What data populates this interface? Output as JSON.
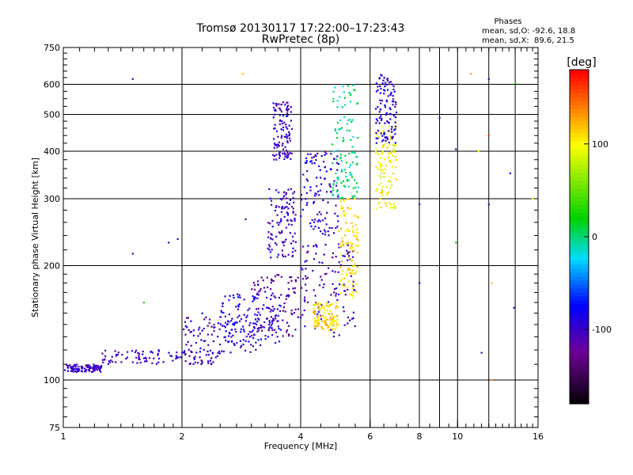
{
  "chart_data": {
    "type": "scatter",
    "title": "Tromsø 20130117 17:22:00–17:23:43",
    "subtitle": "RwPretec (8p)",
    "xlabel": "Frequency [MHz]",
    "ylabel": "Stationary phase Virtual Height [km]",
    "xscale": "log",
    "yscale": "log",
    "xlim": [
      1,
      16
    ],
    "ylim": [
      75,
      750
    ],
    "x_ticks": [
      "1",
      "2",
      "4",
      "6",
      "8",
      "10",
      "16"
    ],
    "y_ticks": [
      "75",
      "100",
      "200",
      "300",
      "400",
      "500",
      "600",
      "750"
    ],
    "grid": true,
    "legend_position": "top-right",
    "stats": {
      "heading": "Phases",
      "line_o": "mean, sd,O: -92.6, 18.8",
      "line_x": "mean, sd,X:  89.6, 21.5"
    },
    "colorbar": {
      "label": "[deg]",
      "range": [
        -180,
        180
      ],
      "ticks": [
        "100",
        "0",
        "-100"
      ],
      "tick_values": [
        100,
        0,
        -100
      ]
    },
    "clusters": [
      {
        "x": [
          1.0,
          1.25
        ],
        "y": [
          105,
          110
        ],
        "phase": -100
      },
      {
        "x": [
          1.25,
          2.5
        ],
        "y": [
          110,
          120
        ],
        "phase": -100
      },
      {
        "x": [
          2.0,
          3.2
        ],
        "y": [
          118,
          150
        ],
        "phase": -95
      },
      {
        "x": [
          2.5,
          3.6
        ],
        "y": [
          125,
          170
        ],
        "phase": -85
      },
      {
        "x": [
          3.0,
          4.1
        ],
        "y": [
          130,
          190
        ],
        "phase": -110
      },
      {
        "x": [
          3.3,
          3.9
        ],
        "y": [
          210,
          320
        ],
        "phase": -100
      },
      {
        "x": [
          3.4,
          3.8
        ],
        "y": [
          380,
          540
        ],
        "phase": -100
      },
      {
        "x": [
          4.0,
          5.5
        ],
        "y": [
          130,
          230
        ],
        "phase": -100
      },
      {
        "x": [
          4.0,
          5.0
        ],
        "y": [
          240,
          400
        ],
        "phase": -90
      },
      {
        "x": [
          4.3,
          5.0
        ],
        "y": [
          135,
          160
        ],
        "phase": 110
      },
      {
        "x": [
          5.0,
          5.6
        ],
        "y": [
          165,
          300
        ],
        "phase": 110
      },
      {
        "x": [
          4.8,
          5.6
        ],
        "y": [
          300,
          600
        ],
        "phase": 0
      },
      {
        "x": [
          6.2,
          7.0
        ],
        "y": [
          280,
          480
        ],
        "phase": 100
      },
      {
        "x": [
          6.2,
          7.0
        ],
        "y": [
          420,
          640
        ],
        "phase": -90
      }
    ],
    "scattered_points": [
      {
        "x": 1.5,
        "y": 620,
        "phase": -110
      },
      {
        "x": 1.5,
        "y": 215,
        "phase": -100
      },
      {
        "x": 1.6,
        "y": 160,
        "phase": 20
      },
      {
        "x": 1.85,
        "y": 230,
        "phase": -100
      },
      {
        "x": 1.95,
        "y": 235,
        "phase": -100
      },
      {
        "x": 2.85,
        "y": 640,
        "phase": 120
      },
      {
        "x": 2.9,
        "y": 265,
        "phase": -100
      },
      {
        "x": 8.0,
        "y": 290,
        "phase": -100
      },
      {
        "x": 8.0,
        "y": 180,
        "phase": -90
      },
      {
        "x": 9.0,
        "y": 490,
        "phase": -100
      },
      {
        "x": 9.9,
        "y": 230,
        "phase": 20
      },
      {
        "x": 9.9,
        "y": 405,
        "phase": -130
      },
      {
        "x": 10.8,
        "y": 640,
        "phase": 130
      },
      {
        "x": 11.3,
        "y": 400,
        "phase": 100
      },
      {
        "x": 11.5,
        "y": 118,
        "phase": -100
      },
      {
        "x": 12.0,
        "y": 620,
        "phase": -100
      },
      {
        "x": 12.0,
        "y": 440,
        "phase": 170
      },
      {
        "x": 12.0,
        "y": 290,
        "phase": -110
      },
      {
        "x": 12.2,
        "y": 180,
        "phase": 120
      },
      {
        "x": 12.2,
        "y": 100,
        "phase": 130
      },
      {
        "x": 13.6,
        "y": 350,
        "phase": -100
      },
      {
        "x": 13.9,
        "y": 155,
        "phase": -100
      },
      {
        "x": 14.0,
        "y": 605,
        "phase": 40
      },
      {
        "x": 15.5,
        "y": 300,
        "phase": 100
      }
    ]
  }
}
